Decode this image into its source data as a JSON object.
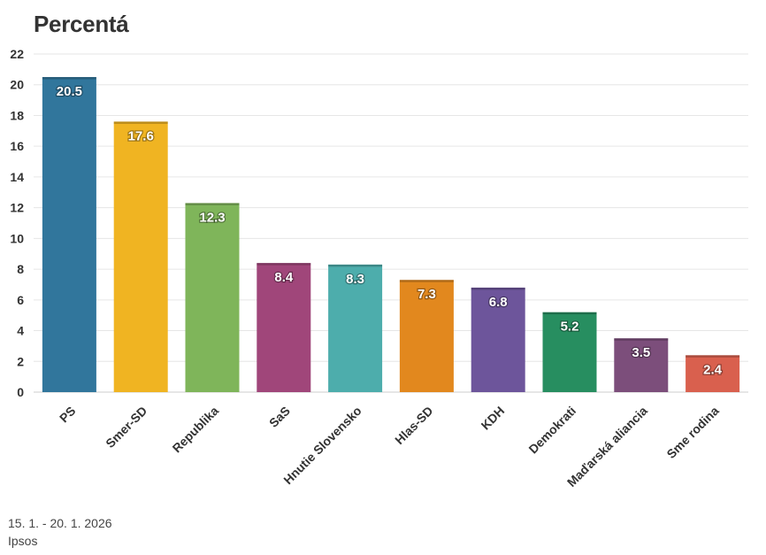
{
  "chart_data": {
    "type": "bar",
    "title": "Percentá",
    "xlabel": "",
    "ylabel": "",
    "ylim": [
      0,
      22
    ],
    "yticks": [
      0,
      2,
      4,
      6,
      8,
      10,
      12,
      14,
      16,
      18,
      20,
      22
    ],
    "grid": true,
    "categories": [
      "PS",
      "Smer-SD",
      "Republika",
      "SaS",
      "Hnutie Slovensko",
      "Hlas-SD",
      "KDH",
      "Demokrati",
      "Maďarská aliancia",
      "Sme rodina"
    ],
    "values": [
      20.5,
      17.6,
      12.3,
      8.4,
      8.3,
      7.3,
      6.8,
      5.2,
      3.5,
      2.4
    ],
    "colors": [
      "#31769c",
      "#f0b422",
      "#7fb55a",
      "#a0467a",
      "#4dadac",
      "#e2881e",
      "#6d559b",
      "#278e60",
      "#7c4e7b",
      "#d9604e"
    ]
  },
  "footer": {
    "date_range": "15. 1. - 20. 1. 2026",
    "source": "Ipsos"
  }
}
